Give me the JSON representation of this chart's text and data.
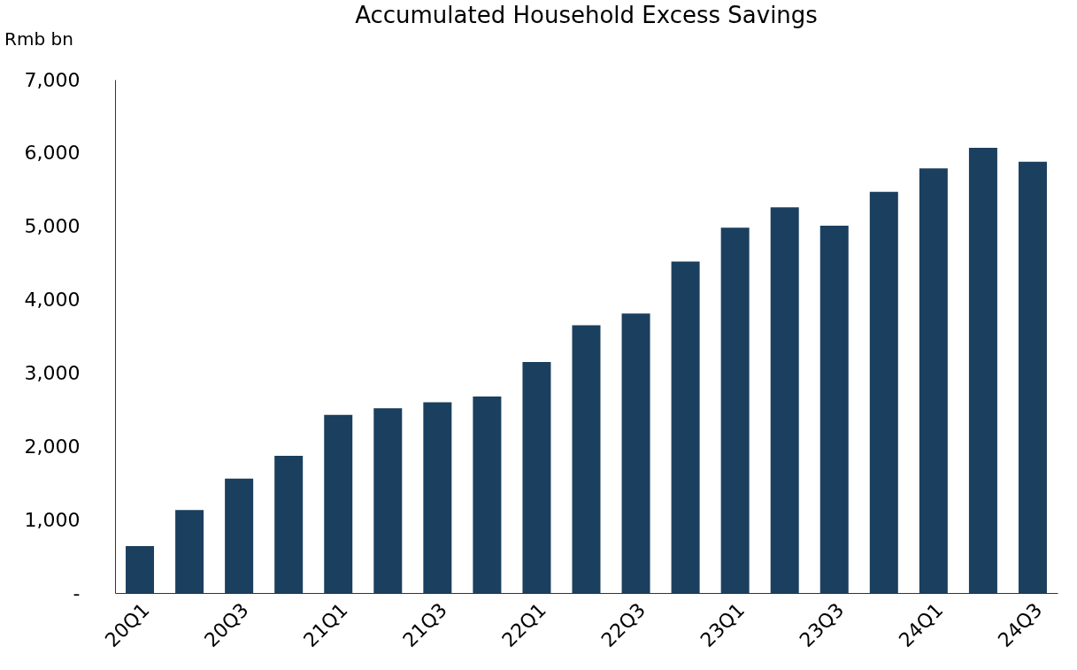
{
  "chart_data": {
    "type": "bar",
    "title": "Accumulated Household Excess Savings",
    "ylabel": "Rmb bn",
    "categories": [
      "20Q1",
      null,
      "20Q3",
      null,
      "21Q1",
      null,
      "21Q3",
      null,
      "22Q1",
      null,
      "22Q3",
      null,
      "23Q1",
      null,
      "23Q3",
      null,
      "24Q1",
      null,
      "24Q3"
    ],
    "values": [
      640,
      1130,
      1560,
      1870,
      2430,
      2520,
      2600,
      2680,
      3150,
      3650,
      3810,
      4520,
      4980,
      5260,
      5010,
      5470,
      5790,
      6070,
      5880
    ],
    "color": "#1b3f5e",
    "ylim": [
      0,
      7000
    ],
    "yticks": [
      {
        "value": 0,
        "label": "-"
      },
      {
        "value": 1000,
        "label": "1,000"
      },
      {
        "value": 2000,
        "label": "2,000"
      },
      {
        "value": 3000,
        "label": "3,000"
      },
      {
        "value": 4000,
        "label": "4,000"
      },
      {
        "value": 5000,
        "label": "5,000"
      },
      {
        "value": 6000,
        "label": "6,000"
      },
      {
        "value": 7000,
        "label": "7,000"
      }
    ],
    "grid": false
  }
}
